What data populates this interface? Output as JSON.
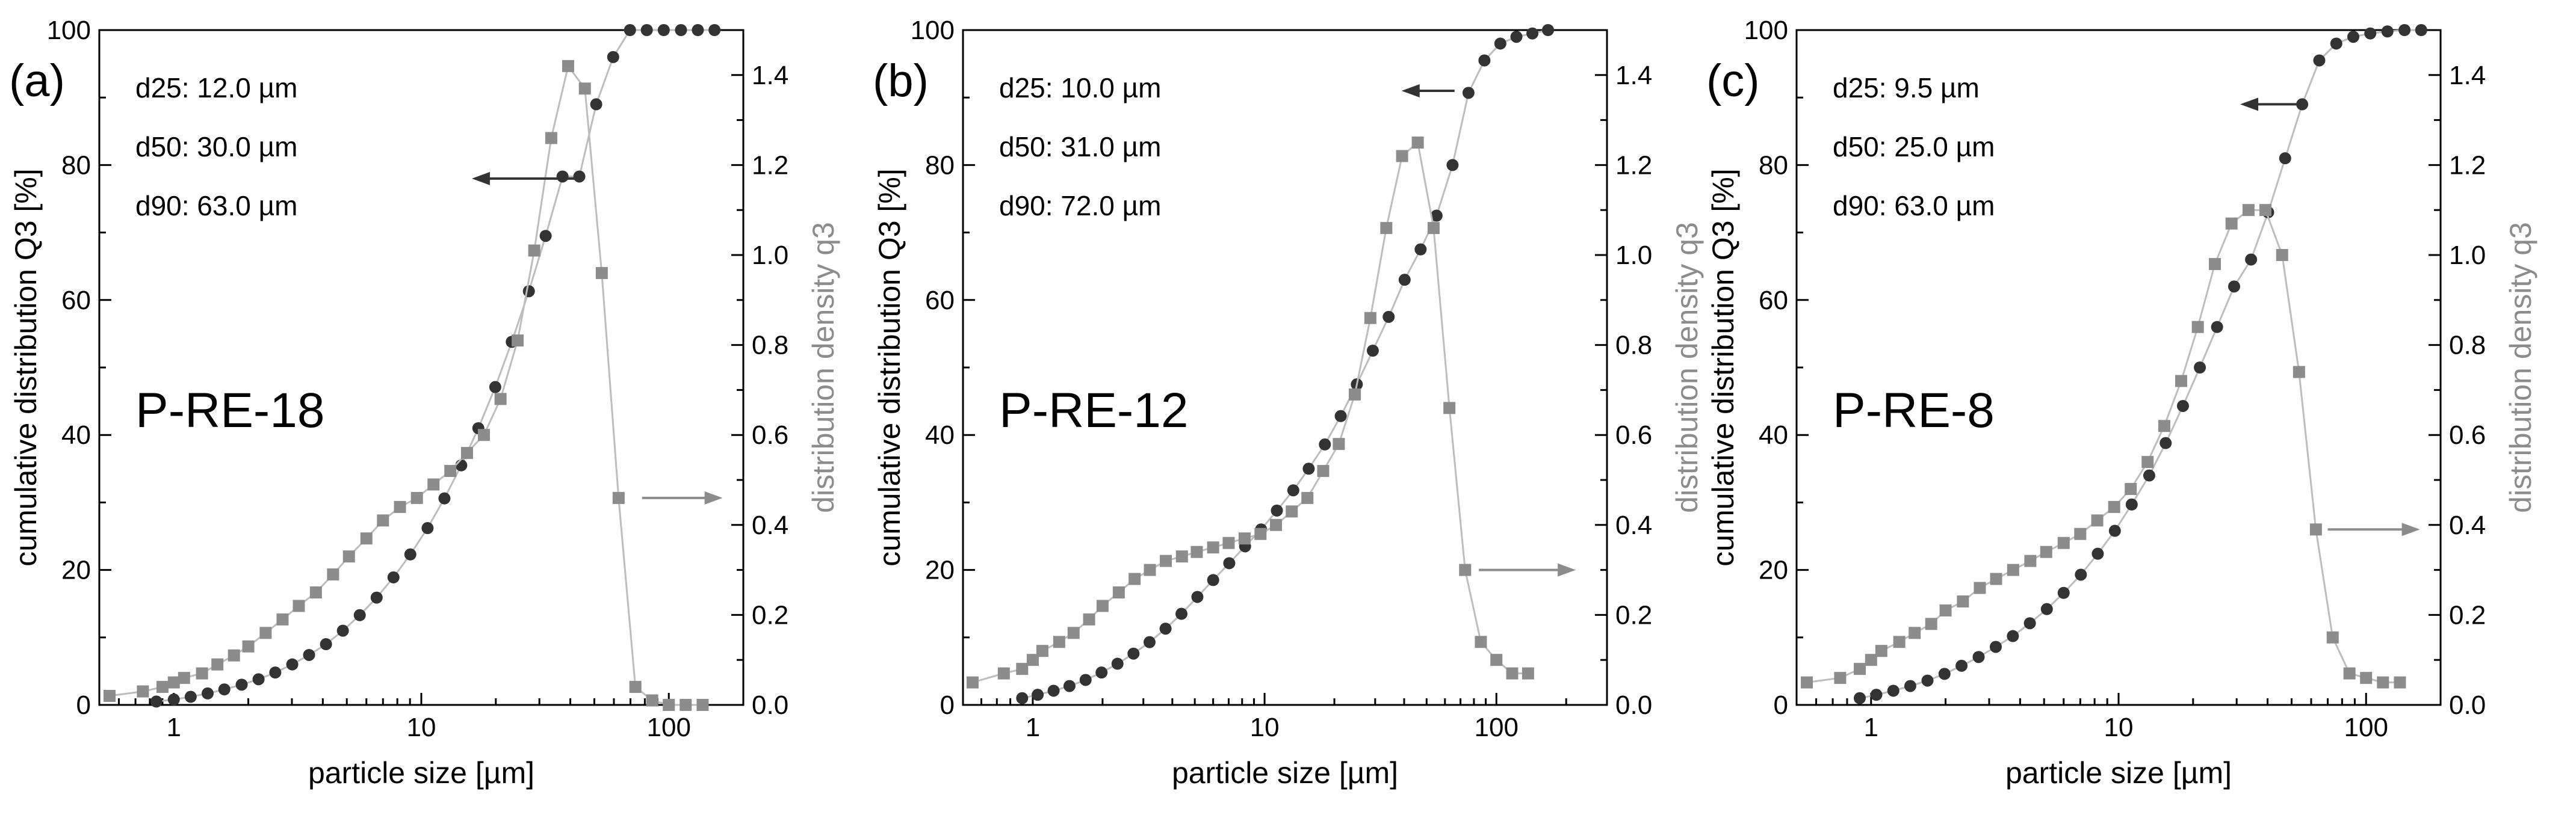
{
  "chart_data": [
    {
      "type": "scatter",
      "panel_label": "(a)",
      "sample_name": "P-RE-18",
      "stats": [
        "d25: 12.0 µm",
        "d50: 30.0 µm",
        "d90: 63.0 µm"
      ],
      "xlabel": "particle size [µm]",
      "ylabel_left": "cumulative distribution Q3 [%]",
      "ylabel_right": "distribution density q3",
      "xscale": "log",
      "xlim": [
        0.5,
        200
      ],
      "ylim_left": [
        0,
        100
      ],
      "ylim_right": [
        0,
        1.5
      ],
      "xticks": [
        1,
        10,
        100
      ],
      "xtick_labels": [
        "1",
        "10",
        "100"
      ],
      "yticks_left": [
        0,
        20,
        40,
        60,
        80,
        100
      ],
      "ytick_labels_left": [
        "0",
        "20",
        "40",
        "60",
        "80",
        "100"
      ],
      "yticks_right": [
        0,
        0.2,
        0.4,
        0.6,
        0.8,
        1.0,
        1.2,
        1.4
      ],
      "ytick_labels_right": [
        "0.0",
        "0.2",
        "0.4",
        "0.6",
        "0.8",
        "1.0",
        "1.2",
        "1.4"
      ],
      "left_arrow": {
        "x_from": 42,
        "x_to": 16,
        "y": 78
      },
      "right_arrow": {
        "x_from": 78,
        "x_to": 165,
        "y": 0.46
      },
      "series": [
        {
          "name": "cumulative distribution Q3",
          "axis": "left",
          "marker": "circle",
          "color": "#333333",
          "x": [
            0.85,
            1.0,
            1.17,
            1.37,
            1.6,
            1.88,
            2.2,
            2.57,
            3.01,
            3.52,
            4.12,
            4.82,
            5.64,
            6.6,
            7.72,
            9.03,
            10.6,
            12.4,
            14.5,
            17.0,
            19.9,
            23.2,
            27.2,
            31.8,
            37.2,
            43.5,
            50.9,
            59.6,
            69.7,
            81.5,
            95.4,
            112,
            131,
            153
          ],
          "y": [
            0.5,
            0.8,
            1.2,
            1.7,
            2.3,
            3.0,
            3.8,
            4.8,
            6.0,
            7.4,
            9.0,
            11.0,
            13.3,
            15.9,
            18.9,
            22.3,
            26.2,
            30.6,
            35.5,
            41.0,
            47.1,
            53.8,
            61.3,
            69.5,
            78.3,
            78.3,
            89.0,
            96.0,
            100,
            100,
            100,
            100,
            100,
            100
          ]
        },
        {
          "name": "distribution density q3",
          "axis": "right",
          "marker": "square",
          "color": "#8c8c8c",
          "x": [
            0.55,
            0.75,
            0.9,
            1.0,
            1.1,
            1.3,
            1.5,
            1.75,
            2.0,
            2.35,
            2.75,
            3.2,
            3.75,
            4.4,
            5.1,
            6.0,
            7.0,
            8.2,
            9.6,
            11.2,
            13.1,
            15.3,
            17.9,
            20.9,
            24.5,
            28.6,
            33.5,
            39.2,
            45.8,
            53.6,
            62.7,
            73.3,
            85.7,
            100,
            117,
            137
          ],
          "y": [
            0.02,
            0.03,
            0.04,
            0.05,
            0.06,
            0.07,
            0.09,
            0.11,
            0.13,
            0.16,
            0.19,
            0.22,
            0.25,
            0.29,
            0.33,
            0.37,
            0.41,
            0.44,
            0.46,
            0.49,
            0.52,
            0.56,
            0.6,
            0.68,
            0.81,
            1.01,
            1.26,
            1.42,
            1.37,
            0.96,
            0.46,
            0.04,
            0.01,
            0.0,
            0.0,
            0.0
          ]
        }
      ]
    },
    {
      "type": "scatter",
      "panel_label": "(b)",
      "sample_name": "P-RE-12",
      "stats": [
        "d25: 10.0 µm",
        "d50: 31.0 µm",
        "d90: 72.0 µm"
      ],
      "xlabel": "particle size [µm]",
      "ylabel_left": "cumulative distribution Q3 [%]",
      "ylabel_right": "distribution density q3",
      "xscale": "log",
      "xlim": [
        0.5,
        300
      ],
      "ylim_left": [
        0,
        100
      ],
      "ylim_right": [
        0,
        1.5
      ],
      "xticks": [
        1,
        10,
        100
      ],
      "xtick_labels": [
        "1",
        "10",
        "100"
      ],
      "yticks_left": [
        0,
        20,
        40,
        60,
        80,
        100
      ],
      "ytick_labels_left": [
        "0",
        "20",
        "40",
        "60",
        "80",
        "100"
      ],
      "yticks_right": [
        0,
        0.2,
        0.4,
        0.6,
        0.8,
        1.0,
        1.2,
        1.4
      ],
      "ytick_labels_right": [
        "0.0",
        "0.2",
        "0.4",
        "0.6",
        "0.8",
        "1.0",
        "1.2",
        "1.4"
      ],
      "left_arrow": {
        "x_from": 66,
        "x_to": 39,
        "y": 91
      },
      "right_arrow": {
        "x_from": 84,
        "x_to": 220,
        "y": 0.3
      },
      "series": [
        {
          "name": "cumulative distribution Q3",
          "axis": "left",
          "marker": "circle",
          "color": "#333333",
          "x": [
            0.9,
            1.05,
            1.23,
            1.44,
            1.69,
            1.98,
            2.32,
            2.72,
            3.19,
            3.74,
            4.38,
            5.13,
            6.0,
            7.04,
            8.24,
            9.66,
            11.3,
            13.3,
            15.5,
            18.2,
            21.3,
            25.0,
            29.3,
            34.3,
            40.2,
            47.1,
            55.2,
            64.7,
            75.8,
            88.8,
            104,
            122,
            143,
            167
          ],
          "y": [
            1.0,
            1.5,
            2.1,
            2.8,
            3.7,
            4.8,
            6.1,
            7.6,
            9.3,
            11.3,
            13.5,
            16.0,
            18.5,
            21.0,
            23.5,
            26.0,
            28.8,
            31.8,
            35.0,
            38.6,
            42.8,
            47.5,
            52.5,
            57.5,
            63.0,
            67.5,
            72.5,
            80.0,
            90.7,
            95.5,
            98.0,
            99.0,
            99.5,
            100
          ]
        },
        {
          "name": "distribution density q3",
          "axis": "right",
          "marker": "square",
          "color": "#8c8c8c",
          "x": [
            0.55,
            0.75,
            0.9,
            1.0,
            1.1,
            1.3,
            1.5,
            1.75,
            2.0,
            2.35,
            2.75,
            3.2,
            3.75,
            4.4,
            5.1,
            6.0,
            7.0,
            8.2,
            9.6,
            11.2,
            13.1,
            15.3,
            17.9,
            20.9,
            24.5,
            28.6,
            33.5,
            39.2,
            45.8,
            53.6,
            62.7,
            73.3,
            85.7,
            100,
            117,
            137
          ],
          "y": [
            0.05,
            0.07,
            0.08,
            0.1,
            0.12,
            0.14,
            0.16,
            0.19,
            0.22,
            0.25,
            0.28,
            0.3,
            0.32,
            0.33,
            0.34,
            0.35,
            0.36,
            0.37,
            0.38,
            0.4,
            0.43,
            0.46,
            0.52,
            0.58,
            0.69,
            0.86,
            1.06,
            1.22,
            1.25,
            1.06,
            0.66,
            0.3,
            0.14,
            0.1,
            0.07,
            0.07
          ]
        }
      ]
    },
    {
      "type": "scatter",
      "panel_label": "(c)",
      "sample_name": "P-RE-8",
      "stats": [
        "d25: 9.5 µm",
        "d50: 25.0 µm",
        "d90: 63.0 µm"
      ],
      "xlabel": "particle size [µm]",
      "ylabel_left": "cumulative distribution Q3 [%]",
      "ylabel_right": "distribution density q3",
      "xscale": "log",
      "xlim": [
        0.5,
        200
      ],
      "ylim_left": [
        0,
        100
      ],
      "ylim_right": [
        0,
        1.5
      ],
      "xticks": [
        1,
        10,
        100
      ],
      "xtick_labels": [
        "1",
        "10",
        "100"
      ],
      "yticks_left": [
        0,
        20,
        40,
        60,
        80,
        100
      ],
      "ytick_labels_left": [
        "0",
        "20",
        "40",
        "60",
        "80",
        "100"
      ],
      "yticks_right": [
        0,
        0.2,
        0.4,
        0.6,
        0.8,
        1.0,
        1.2,
        1.4
      ],
      "ytick_labels_right": [
        "0.0",
        "0.2",
        "0.4",
        "0.6",
        "0.8",
        "1.0",
        "1.2",
        "1.4"
      ],
      "left_arrow": {
        "x_from": 55,
        "x_to": 31,
        "y": 89
      },
      "right_arrow": {
        "x_from": 70,
        "x_to": 165,
        "y": 0.39
      },
      "series": [
        {
          "name": "cumulative distribution Q3",
          "axis": "left",
          "marker": "circle",
          "color": "#333333",
          "x": [
            0.9,
            1.05,
            1.23,
            1.44,
            1.69,
            1.98,
            2.32,
            2.72,
            3.19,
            3.74,
            4.38,
            5.13,
            6.0,
            7.04,
            8.24,
            9.66,
            11.3,
            13.3,
            15.5,
            18.2,
            21.3,
            25.0,
            29.3,
            34.3,
            40.2,
            47.1,
            55.2,
            64.7,
            75.8,
            88.8,
            104,
            122,
            143,
            167
          ],
          "y": [
            1.0,
            1.5,
            2.1,
            2.8,
            3.6,
            4.6,
            5.8,
            7.1,
            8.6,
            10.2,
            12.1,
            14.2,
            16.6,
            19.3,
            22.4,
            25.8,
            29.7,
            34.0,
            38.8,
            44.3,
            50.0,
            56.0,
            62.0,
            66.0,
            73.0,
            81.0,
            89.0,
            95.5,
            98.0,
            99.0,
            99.5,
            99.8,
            100,
            100
          ]
        },
        {
          "name": "distribution density q3",
          "axis": "right",
          "marker": "square",
          "color": "#8c8c8c",
          "x": [
            0.55,
            0.75,
            0.9,
            1.0,
            1.1,
            1.3,
            1.5,
            1.75,
            2.0,
            2.35,
            2.75,
            3.2,
            3.75,
            4.4,
            5.1,
            6.0,
            7.0,
            8.2,
            9.6,
            11.2,
            13.1,
            15.3,
            17.9,
            20.9,
            24.5,
            28.6,
            33.5,
            39.2,
            45.8,
            53.6,
            62.7,
            73.3,
            85.7,
            100,
            117,
            137
          ],
          "y": [
            0.05,
            0.06,
            0.08,
            0.1,
            0.12,
            0.14,
            0.16,
            0.18,
            0.21,
            0.23,
            0.26,
            0.28,
            0.3,
            0.32,
            0.34,
            0.36,
            0.38,
            0.41,
            0.44,
            0.48,
            0.54,
            0.62,
            0.72,
            0.84,
            0.98,
            1.07,
            1.1,
            1.1,
            1.0,
            0.74,
            0.39,
            0.15,
            0.07,
            0.06,
            0.05,
            0.05
          ]
        }
      ]
    }
  ]
}
